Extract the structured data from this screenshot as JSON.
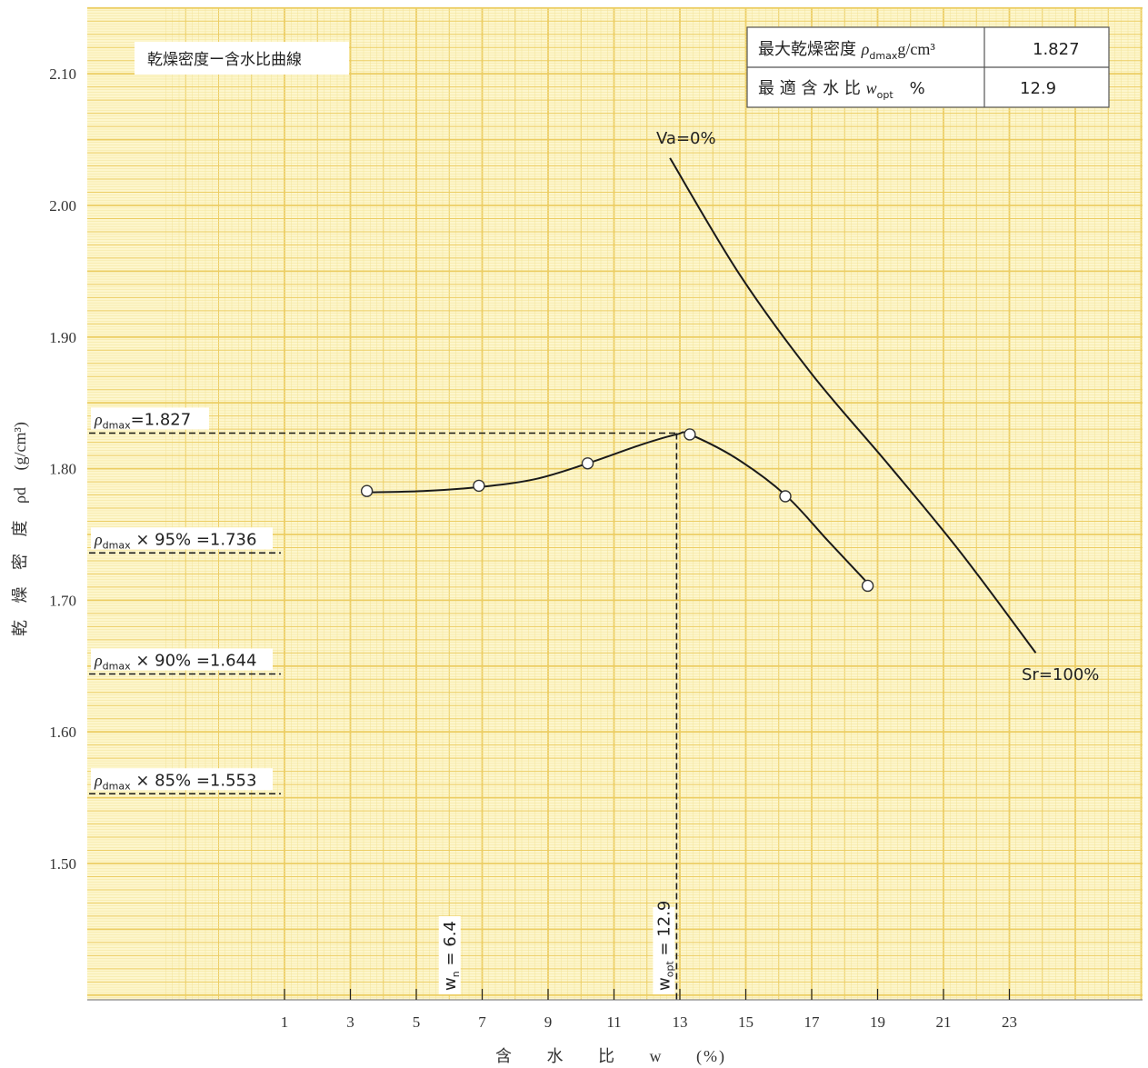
{
  "chart_data": {
    "type": "line",
    "title": "乾燥密度ー含水比曲線",
    "xlabel": "含 水 比 w (%)",
    "ylabel": "乾 燥 密 度 ρd (g/cm³)",
    "xlim": [
      -2.6,
      27.2
    ],
    "ylim": [
      1.397,
      2.153
    ],
    "xticks": [
      1,
      3,
      5,
      7,
      9,
      11,
      13,
      15,
      17,
      19,
      21,
      23
    ],
    "yticks": [
      1.5,
      1.6,
      1.7,
      1.8,
      1.9,
      2.0,
      2.1
    ],
    "ytick_labels": [
      "1.50",
      "1.60",
      "1.70",
      "1.80",
      "1.90",
      "2.00",
      "2.10"
    ],
    "grid": true,
    "series": [
      {
        "name": "",
        "markers": "circle",
        "x": [
          3.5,
          6.9,
          10.2,
          13.3,
          16.2,
          18.7
        ],
        "y": [
          1.783,
          1.787,
          1.804,
          1.826,
          1.779,
          1.711
        ],
        "curve_x": [
          3.5,
          5.2,
          6.9,
          8.6,
          10.2,
          11.8,
          12.9,
          13.3,
          14.7,
          16.2,
          17.5,
          18.7
        ],
        "curve_y": [
          1.782,
          1.783,
          1.786,
          1.792,
          1.804,
          1.818,
          1.826,
          1.826,
          1.808,
          1.78,
          1.745,
          1.713
        ]
      },
      {
        "name": "",
        "markers": "none",
        "x": [
          12.7,
          14.8,
          17.0,
          19.3,
          21.5,
          23.8
        ],
        "y": [
          2.036,
          1.948,
          1.872,
          1.804,
          1.737,
          1.66
        ]
      }
    ],
    "zero_air_void_label": "Va=0%",
    "saturation_label": "Sr=100%",
    "reference_lines": [
      {
        "label_rho": "ρ",
        "label_sub": "dmax",
        "label_rest": "=1.827",
        "y": 1.827,
        "x_end": 12.9
      },
      {
        "label_rho": "ρ",
        "label_sub": "dmax",
        "label_rest": " × 95% =1.736",
        "y": 1.736,
        "x_end": 1.0
      },
      {
        "label_rho": "ρ",
        "label_sub": "dmax",
        "label_rest": " × 90% =1.644",
        "y": 1.644,
        "x_end": 1.0
      },
      {
        "label_rho": "ρ",
        "label_sub": "dmax",
        "label_rest": " × 85% =1.553",
        "y": 1.553,
        "x_end": 1.0
      }
    ],
    "vertical_markers": [
      {
        "label_w": "w",
        "label_sub": "n",
        "label_rest": " = 6.4",
        "x": 6.4,
        "dashed": false
      },
      {
        "label_w": "w",
        "label_sub": "opt",
        "label_rest": " = 12.9",
        "x": 12.9,
        "dashed": true
      }
    ]
  },
  "result_table": {
    "rows": [
      {
        "label_main": "最大乾燥密度 ",
        "label_sym": "ρ",
        "label_sub": "dmax",
        "label_unit": "g/cm³",
        "value": "1.827"
      },
      {
        "label_main": "最 適 含 水 比 ",
        "label_sym": "w",
        "label_sub": "opt",
        "label_unit": "%",
        "value": "12.9"
      }
    ]
  },
  "colors": {
    "paper": "#fdf6cc",
    "grid_minor": "#f3e49a",
    "grid_major": "#eccd63",
    "ink": "#1a1a1a"
  }
}
